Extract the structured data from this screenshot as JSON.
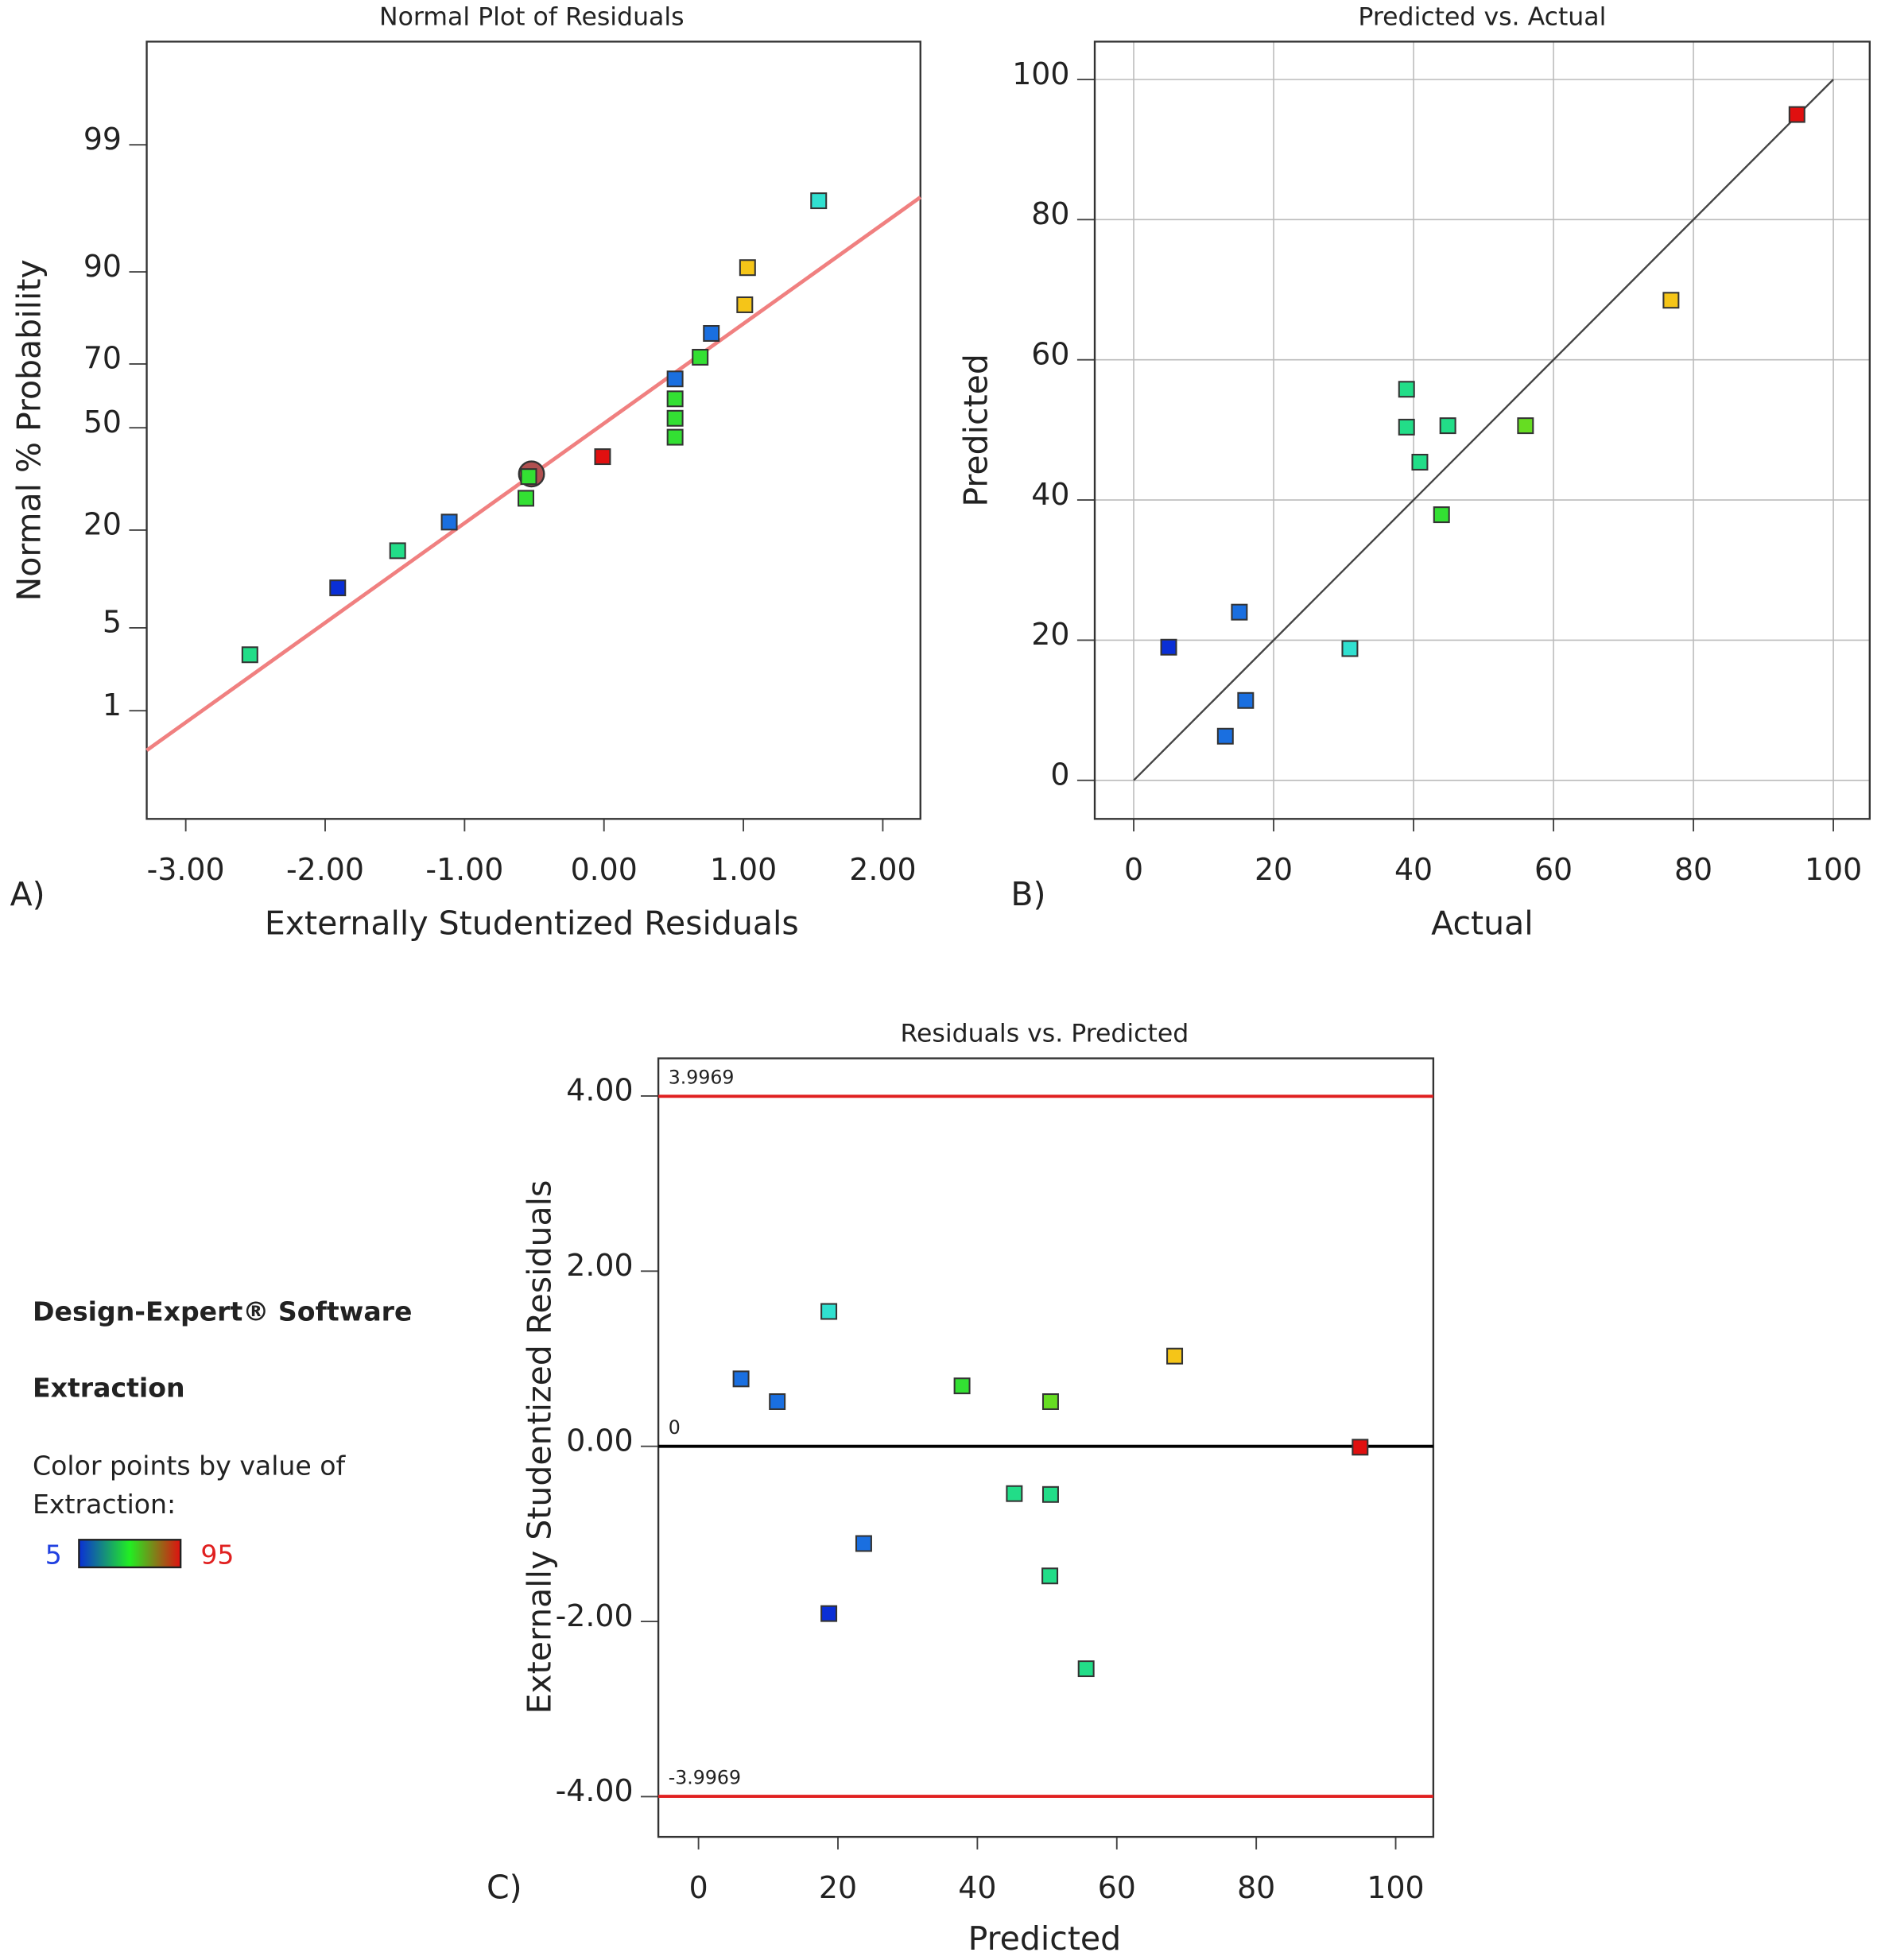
{
  "chart_data": [
    {
      "type": "normal-probability",
      "title": "Normal Plot of Residuals",
      "panel_label": "A)",
      "x_label": "Externally Studentized Residuals",
      "y_label": "Normal % Probability",
      "xlim": [
        -3.28,
        2.27
      ],
      "ylim": [
        0.065,
        99.925
      ],
      "yscale": "probit",
      "xticks": [
        {
          "value": -3,
          "label": "-3.00"
        },
        {
          "value": -2,
          "label": "-2.00"
        },
        {
          "value": -1,
          "label": "-1.00"
        },
        {
          "value": 0,
          "label": "0.00"
        },
        {
          "value": 1,
          "label": "1.00"
        },
        {
          "value": 2,
          "label": "2.00"
        }
      ],
      "yticks": [
        1,
        5,
        20,
        50,
        70,
        90,
        99
      ],
      "grid": false,
      "x": [
        -2.54,
        -1.91,
        -1.48,
        -1.11,
        -0.56,
        -0.54,
        -0.01,
        0.51,
        0.51,
        0.51,
        0.51,
        0.69,
        0.77,
        1.01,
        1.03,
        1.54
      ],
      "values": [
        3.1,
        9.4,
        15.6,
        21.9,
        28.1,
        34.4,
        40.6,
        46.9,
        53.1,
        59.4,
        65.6,
        71.9,
        78.1,
        84.4,
        90.6,
        96.9
      ],
      "colors": [
        "#22dd88",
        "#0a2fd6",
        "#22dd88",
        "#1a6fe0",
        "#33e033",
        "#33e033",
        "#e01010",
        "#33e033",
        "#33e033",
        "#33e033",
        "#1a6fe0",
        "#33e033",
        "#1a6fe0",
        "#f5c518",
        "#f5c518",
        "#30e0d0"
      ],
      "fit_line": {
        "x": [
          -3.28,
          2.27
        ],
        "values": [
          0.4,
          97.1
        ],
        "color": "#f08080"
      },
      "highlight": {
        "x": -0.52,
        "value": 35.2,
        "color": "#b05050"
      }
    },
    {
      "type": "scatter",
      "title": "Predicted vs. Actual",
      "panel_label": "B)",
      "x_label": "Actual",
      "y_label": "Predicted",
      "xlim": [
        -5.57,
        105.2
      ],
      "ylim": [
        -5.5,
        105.4
      ],
      "xticks": [
        0,
        20,
        40,
        60,
        80,
        100
      ],
      "yticks": [
        0,
        20,
        40,
        60,
        80,
        100
      ],
      "grid": true,
      "x": [
        5.0,
        15.1,
        16.0,
        13.1,
        30.9,
        39.0,
        39.0,
        40.9,
        44.9,
        44.0,
        56.0,
        76.8,
        94.8
      ],
      "values": [
        19.0,
        24.0,
        11.4,
        6.3,
        18.8,
        55.8,
        50.4,
        45.4,
        50.6,
        37.9,
        50.6,
        68.5,
        95.0
      ],
      "colors": [
        "#0a2fd6",
        "#1a6fe0",
        "#1a6fe0",
        "#1a6fe0",
        "#30e0d0",
        "#22dd88",
        "#22dd88",
        "#22dd88",
        "#22dd88",
        "#33e033",
        "#66dd22",
        "#f5c518",
        "#e01010"
      ],
      "diagonal": {
        "x": [
          0,
          100
        ],
        "values": [
          0,
          100
        ],
        "color": "#444444"
      }
    },
    {
      "type": "scatter",
      "title": "Residuals vs. Predicted",
      "panel_label": "C)",
      "x_label": "Predicted",
      "y_label": "Externally Studentized Residuals",
      "xlim": [
        -5.76,
        105.4
      ],
      "ylim": [
        -4.46,
        4.43
      ],
      "xticks": [
        0,
        20,
        40,
        60,
        80,
        100
      ],
      "yticks": [
        {
          "value": -4,
          "label": "-4.00"
        },
        {
          "value": -2,
          "label": "-2.00"
        },
        {
          "value": 0,
          "label": "0.00"
        },
        {
          "value": 2,
          "label": "2.00"
        },
        {
          "value": 4,
          "label": "4.00"
        }
      ],
      "grid": false,
      "x": [
        6.1,
        11.3,
        18.7,
        23.7,
        18.7,
        37.8,
        45.3,
        50.5,
        50.5,
        50.4,
        55.6,
        68.3,
        94.9
      ],
      "values": [
        0.77,
        0.51,
        1.54,
        -1.11,
        -1.91,
        0.69,
        -0.54,
        0.51,
        -0.55,
        -1.48,
        -2.54,
        1.03,
        -0.01
      ],
      "colors": [
        "#1a6fe0",
        "#1a6fe0",
        "#30e0d0",
        "#1a6fe0",
        "#0a2fd6",
        "#33e033",
        "#22dd88",
        "#66dd22",
        "#22dd88",
        "#22dd88",
        "#22dd88",
        "#f5c518",
        "#e01010"
      ],
      "hlines": [
        {
          "value": 3.9969,
          "label": "3.9969",
          "color": "#e02020"
        },
        {
          "value": 0,
          "label": "0",
          "color": "#000000"
        },
        {
          "value": -3.9969,
          "label": "-3.9969",
          "color": "#e02020"
        }
      ]
    }
  ],
  "side_panel": {
    "software": "Design-Expert® Software",
    "response": "Extraction",
    "caption_lines": [
      "Color points by value of",
      "Extraction:"
    ],
    "color_min": 5,
    "color_max": 95,
    "gradient": [
      "#0a2fd6",
      "#22ee22",
      "#e01010"
    ]
  }
}
